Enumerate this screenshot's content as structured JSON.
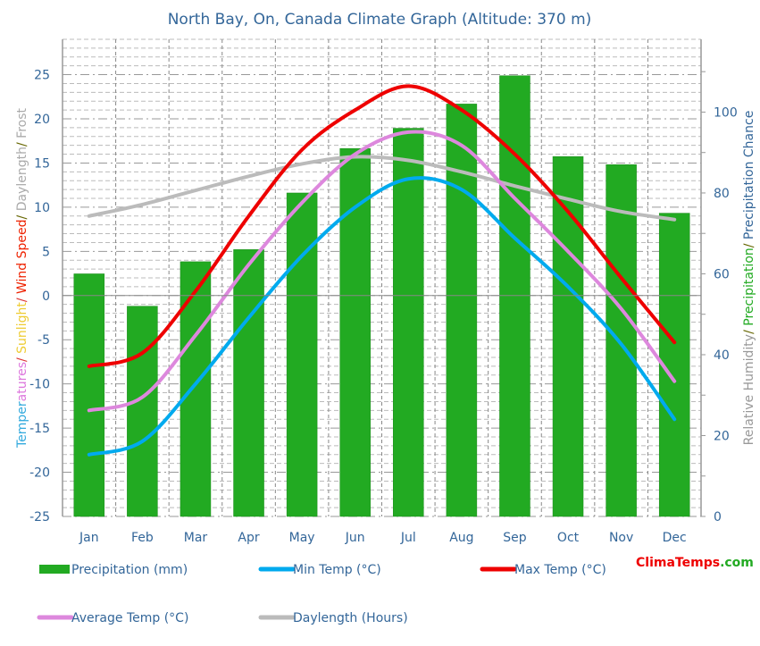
{
  "chart_data": {
    "type": "bar+line",
    "title": "North Bay, On, Canada Climate Graph (Altitude: 370 m)",
    "categories": [
      "Jan",
      "Feb",
      "Mar",
      "Apr",
      "May",
      "Jun",
      "Jul",
      "Aug",
      "Sep",
      "Oct",
      "Nov",
      "Dec"
    ],
    "left_axis": {
      "label_parts": [
        {
          "text": "Temper",
          "color": "#33aadd"
        },
        {
          "text": "atures",
          "color": "#dd77dd"
        },
        {
          "text": "/ ",
          "color": "#dd3333"
        },
        {
          "text": "Sunlight",
          "color": "#eecc33"
        },
        {
          "text": "/ ",
          "color": "#dd3333"
        },
        {
          "text": "Wind Speed",
          "color": "#ee2200"
        },
        {
          "text": "/ ",
          "color": "#666600"
        },
        {
          "text": "Daylength",
          "color": "#aaaaaa"
        },
        {
          "text": "/ ",
          "color": "#666600"
        },
        {
          "text": "Frost",
          "color": "#aaaaaa"
        }
      ],
      "ylim": [
        -25,
        29
      ],
      "ticks": [
        -25,
        -20,
        -15,
        -10,
        -5,
        0,
        5,
        10,
        15,
        20,
        25
      ]
    },
    "right_axis": {
      "label_parts": [
        {
          "text": "Relative Humidity",
          "color": "#999999"
        },
        {
          "text": "/ ",
          "color": "#666600"
        },
        {
          "text": "Precipitation",
          "color": "#22aa22"
        },
        {
          "text": "/ ",
          "color": "#666600"
        },
        {
          "text": "Precipitation Chance",
          "color": "#336699"
        }
      ],
      "ylim": [
        0,
        118
      ],
      "ticks": [
        0,
        20,
        40,
        60,
        80,
        100
      ]
    },
    "grid": true,
    "legend_position": "bottom",
    "series": [
      {
        "name": "Precipitation (mm)",
        "kind": "bar",
        "axis": "right",
        "color": "#22aa22",
        "values": [
          60,
          52,
          63,
          66,
          80,
          91,
          96,
          102,
          109,
          89,
          87,
          75
        ]
      },
      {
        "name": "Min Temp (°C)",
        "kind": "line",
        "axis": "left",
        "color": "#00aaee",
        "values": [
          -18,
          -16.5,
          -10,
          -2.5,
          4.5,
          10,
          13.2,
          12,
          6.5,
          1,
          -5.5,
          -14
        ]
      },
      {
        "name": "Max Temp (°C)",
        "kind": "line",
        "axis": "left",
        "color": "#ee0000",
        "values": [
          -8,
          -6.5,
          0.5,
          9,
          16.5,
          21,
          23.7,
          21,
          16,
          9.5,
          2,
          -5.3
        ]
      },
      {
        "name": "Average Temp (°C)",
        "kind": "line",
        "axis": "left",
        "color": "#dd88dd",
        "values": [
          -13,
          -11.5,
          -4.5,
          3.5,
          10.5,
          16,
          18.5,
          17,
          11,
          5,
          -1.5,
          -9.7
        ]
      },
      {
        "name": "Daylength (Hours)",
        "kind": "line",
        "axis": "left",
        "color": "#bbbbbb",
        "values": [
          9,
          10.3,
          11.9,
          13.5,
          14.9,
          15.7,
          15.3,
          14,
          12.4,
          10.9,
          9.5,
          8.6
        ]
      }
    ]
  },
  "logo": {
    "part1": "Clima",
    "part2": "Temps",
    "part3": ".com"
  }
}
